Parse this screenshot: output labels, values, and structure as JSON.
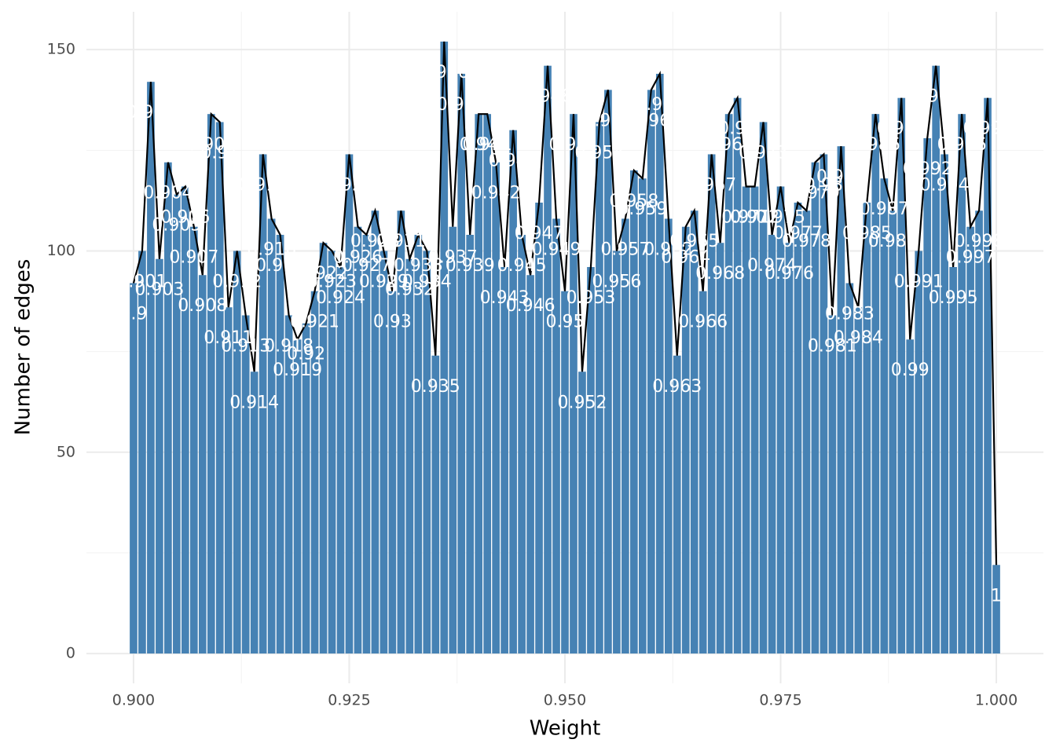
{
  "chart_data": {
    "type": "bar",
    "x_label": "Weight",
    "y_label": "Number of edges",
    "x": [
      0.9,
      0.901,
      0.902,
      0.903,
      0.904,
      0.905,
      0.906,
      0.907,
      0.908,
      0.909,
      0.91,
      0.911,
      0.912,
      0.913,
      0.914,
      0.915,
      0.916,
      0.917,
      0.918,
      0.919,
      0.92,
      0.921,
      0.922,
      0.923,
      0.924,
      0.925,
      0.926,
      0.927,
      0.928,
      0.929,
      0.93,
      0.931,
      0.932,
      0.933,
      0.934,
      0.935,
      0.936,
      0.937,
      0.938,
      0.939,
      0.94,
      0.941,
      0.942,
      0.943,
      0.944,
      0.945,
      0.946,
      0.947,
      0.948,
      0.949,
      0.95,
      0.951,
      0.952,
      0.953,
      0.954,
      0.955,
      0.956,
      0.957,
      0.958,
      0.959,
      0.96,
      0.961,
      0.962,
      0.963,
      0.964,
      0.965,
      0.966,
      0.967,
      0.968,
      0.969,
      0.97,
      0.971,
      0.972,
      0.973,
      0.974,
      0.975,
      0.976,
      0.977,
      0.978,
      0.979,
      0.98,
      0.981,
      0.982,
      0.983,
      0.984,
      0.985,
      0.986,
      0.987,
      0.988,
      0.989,
      0.99,
      0.991,
      0.992,
      0.993,
      0.994,
      0.995,
      0.996,
      0.997,
      0.998,
      0.999,
      1
    ],
    "values": [
      92,
      100,
      142,
      98,
      122,
      114,
      116,
      106,
      94,
      134,
      132,
      86,
      100,
      84,
      70,
      124,
      108,
      104,
      84,
      78,
      82,
      90,
      102,
      100,
      96,
      124,
      106,
      104,
      110,
      100,
      90,
      110,
      98,
      104,
      100,
      74,
      152,
      106,
      144,
      104,
      134,
      134,
      122,
      96,
      130,
      104,
      94,
      112,
      146,
      108,
      90,
      134,
      70,
      96,
      132,
      140,
      100,
      108,
      120,
      118,
      140,
      144,
      108,
      74,
      106,
      110,
      90,
      124,
      102,
      134,
      138,
      116,
      116,
      132,
      104,
      116,
      102,
      112,
      110,
      122,
      124,
      84,
      126,
      92,
      86,
      112,
      134,
      118,
      110,
      138,
      78,
      100,
      128,
      146,
      124,
      96,
      134,
      106,
      110,
      138,
      22
    ],
    "color": "#4682b4",
    "line_color": "#000000",
    "xlim": [
      0.89454,
      1.00546
    ],
    "ylim": [
      -7.4,
      159.4
    ],
    "xticks": [
      {
        "value": 0.9,
        "label": "0.900"
      },
      {
        "value": 0.925,
        "label": "0.925"
      },
      {
        "value": 0.95,
        "label": "0.950"
      },
      {
        "value": 0.975,
        "label": "0.975"
      },
      {
        "value": 1,
        "label": "1.000"
      }
    ],
    "yticks": [
      0,
      50,
      100,
      150
    ],
    "grid": true
  }
}
